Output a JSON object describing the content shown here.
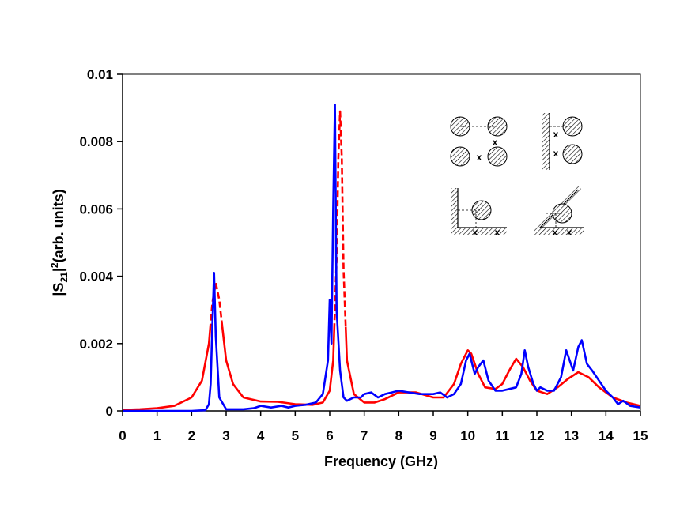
{
  "chart_data": {
    "type": "line",
    "xlabel": "Frequency (GHz)",
    "ylabel": {
      "prefix": "|S",
      "sub": "21",
      "mid": "|",
      "sup": "2",
      "suffix": "(arb. units)"
    },
    "xlim": [
      0,
      15
    ],
    "ylim": [
      0,
      0.01
    ],
    "x_ticks": [
      "0",
      "1",
      "2",
      "3",
      "4",
      "5",
      "6",
      "7",
      "8",
      "9",
      "10",
      "11",
      "12",
      "13",
      "14",
      "15"
    ],
    "y_ticks": [
      "0",
      "0.002",
      "0.004",
      "0.006",
      "0.008",
      "0.01"
    ],
    "grid": false,
    "legend": "none",
    "series": [
      {
        "color": "#ff0000",
        "style": "solid-with-dashed-peaks",
        "x": [
          0,
          0.5,
          1.0,
          1.5,
          2.0,
          2.3,
          2.5,
          2.6,
          2.7,
          2.8,
          2.9,
          3.0,
          3.2,
          3.5,
          4.0,
          4.5,
          5.0,
          5.5,
          5.8,
          6.0,
          6.1,
          6.2,
          6.25,
          6.3,
          6.35,
          6.4,
          6.5,
          6.7,
          7.0,
          7.3,
          7.6,
          8.0,
          8.5,
          9.0,
          9.3,
          9.6,
          9.8,
          10.0,
          10.1,
          10.3,
          10.5,
          10.8,
          11.0,
          11.2,
          11.4,
          11.6,
          11.8,
          12.0,
          12.3,
          12.6,
          12.9,
          13.2,
          13.5,
          13.8,
          14.2,
          14.6,
          15.0
        ],
        "y": [
          3e-05,
          5e-05,
          8e-05,
          0.00015,
          0.0004,
          0.0009,
          0.002,
          0.0032,
          0.0038,
          0.0033,
          0.0024,
          0.0015,
          0.0008,
          0.0004,
          0.00028,
          0.00027,
          0.0002,
          0.00018,
          0.00025,
          0.0006,
          0.0015,
          0.0045,
          0.0075,
          0.0089,
          0.0075,
          0.0042,
          0.0015,
          0.0005,
          0.00025,
          0.00025,
          0.00035,
          0.00055,
          0.00055,
          0.0004,
          0.0004,
          0.0008,
          0.0014,
          0.0018,
          0.0017,
          0.0011,
          0.0007,
          0.00065,
          0.0008,
          0.0012,
          0.00155,
          0.0013,
          0.0009,
          0.0006,
          0.0005,
          0.0007,
          0.00095,
          0.00115,
          0.001,
          0.0007,
          0.0004,
          0.00025,
          0.00015
        ]
      },
      {
        "color": "#0000ff",
        "style": "solid",
        "x": [
          0,
          1.0,
          2.0,
          2.4,
          2.5,
          2.55,
          2.6,
          2.65,
          2.7,
          2.8,
          3.0,
          3.5,
          3.8,
          4.0,
          4.3,
          4.6,
          4.8,
          5.0,
          5.3,
          5.6,
          5.8,
          5.95,
          6.0,
          6.05,
          6.1,
          6.15,
          6.2,
          6.3,
          6.4,
          6.5,
          6.7,
          6.9,
          7.0,
          7.2,
          7.4,
          7.6,
          7.8,
          8.0,
          8.3,
          8.6,
          8.8,
          9.0,
          9.2,
          9.4,
          9.6,
          9.8,
          9.95,
          10.05,
          10.2,
          10.3,
          10.45,
          10.6,
          10.8,
          11.0,
          11.2,
          11.4,
          11.55,
          11.65,
          11.75,
          11.9,
          12.0,
          12.1,
          12.3,
          12.5,
          12.7,
          12.85,
          12.95,
          13.05,
          13.2,
          13.3,
          13.45,
          13.6,
          13.8,
          14.0,
          14.2,
          14.35,
          14.5,
          14.7,
          15.0
        ],
        "y": [
          0,
          0,
          0,
          2e-05,
          0.0002,
          0.0008,
          0.0025,
          0.0041,
          0.0022,
          0.0004,
          5e-05,
          5e-05,
          8e-05,
          0.00015,
          0.0001,
          0.00015,
          0.0001,
          0.00015,
          0.00018,
          0.00025,
          0.0005,
          0.0015,
          0.0033,
          0.002,
          0.006,
          0.0091,
          0.003,
          0.0012,
          0.0004,
          0.0003,
          0.0004,
          0.0004,
          0.0005,
          0.00055,
          0.0004,
          0.0005,
          0.00055,
          0.0006,
          0.00055,
          0.0005,
          0.0005,
          0.0005,
          0.00055,
          0.0004,
          0.0005,
          0.0008,
          0.0015,
          0.0017,
          0.0011,
          0.0013,
          0.0015,
          0.0009,
          0.0006,
          0.0006,
          0.00065,
          0.0007,
          0.0011,
          0.0018,
          0.0013,
          0.0008,
          0.0006,
          0.0007,
          0.0006,
          0.0006,
          0.001,
          0.0018,
          0.0015,
          0.0012,
          0.0019,
          0.0021,
          0.0014,
          0.0012,
          0.0009,
          0.0006,
          0.0004,
          0.0002,
          0.0003,
          0.00015,
          0.0001
        ]
      }
    ]
  },
  "inset": {
    "marker": "x"
  }
}
